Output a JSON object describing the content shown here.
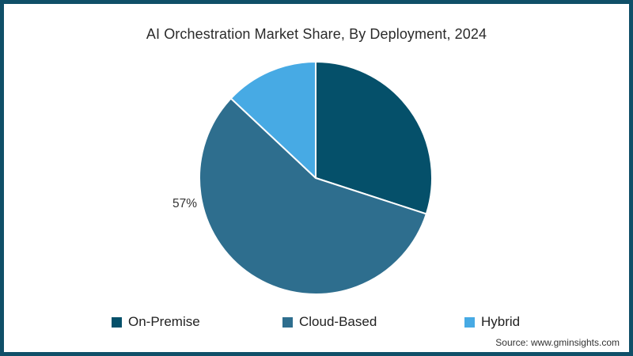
{
  "page": {
    "border_color": "#0f4f68",
    "background": "#ffffff"
  },
  "chart_data": {
    "type": "pie",
    "title": "AI Orchestration Market Share, By Deployment, 2024",
    "slices": [
      {
        "label": "On-Premise",
        "value": 30,
        "color": "#05506a",
        "data_label": ""
      },
      {
        "label": "Cloud-Based",
        "value": 57,
        "color": "#2e6e8e",
        "data_label": "57%"
      },
      {
        "label": "Hybrid",
        "value": 13,
        "color": "#47aae4",
        "data_label": ""
      }
    ],
    "start_angle_deg": 0,
    "direction": "clockwise",
    "legend_position": "bottom",
    "separator_color": "#ffffff"
  },
  "source": {
    "text": "Source: www.gminsights.com"
  }
}
